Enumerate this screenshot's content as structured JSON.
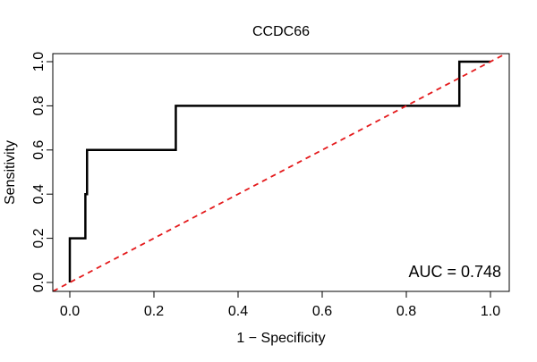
{
  "chart_data": {
    "type": "line",
    "title": "CCDC66",
    "xlabel": "1 − Specificity",
    "ylabel": "Sensitivity",
    "xlim": [
      0,
      1
    ],
    "ylim": [
      0,
      1
    ],
    "x_ticks": [
      0.0,
      0.2,
      0.4,
      0.6,
      0.8,
      1.0
    ],
    "x_tick_labels": [
      "0.0",
      "0.2",
      "0.4",
      "0.6",
      "0.8",
      "1.0"
    ],
    "y_ticks": [
      0.0,
      0.2,
      0.4,
      0.6,
      0.8,
      1.0
    ],
    "y_tick_labels": [
      "0.0",
      "0.2",
      "0.4",
      "0.6",
      "0.8",
      "1.0"
    ],
    "grid": false,
    "annotation": "AUC = 0.748",
    "annotation_placement": "bottom-right",
    "series": [
      {
        "name": "ROC curve",
        "style": "solid",
        "color": "#000000",
        "x": [
          0.0,
          0.0,
          0.037,
          0.037,
          0.041,
          0.041,
          0.252,
          0.252,
          0.926,
          0.926,
          1.0
        ],
        "y": [
          0.0,
          0.2,
          0.2,
          0.4,
          0.4,
          0.6,
          0.6,
          0.8,
          0.8,
          1.0,
          1.0
        ]
      },
      {
        "name": "Reference diagonal",
        "style": "dashed",
        "color": "#e41a1c",
        "x": [
          -0.04,
          1.04
        ],
        "y": [
          -0.04,
          1.04
        ]
      }
    ]
  }
}
